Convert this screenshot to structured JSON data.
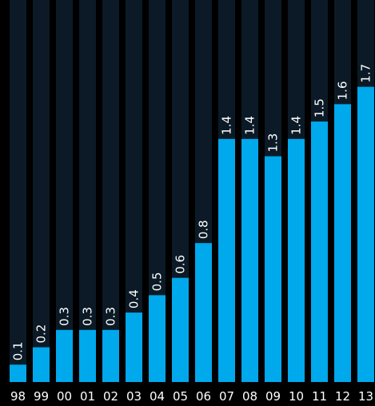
{
  "chart_data": {
    "type": "bar",
    "title": "",
    "xlabel": "",
    "ylabel": "",
    "categories": [
      "98",
      "99",
      "00",
      "01",
      "02",
      "03",
      "04",
      "05",
      "06",
      "07",
      "08",
      "09",
      "10",
      "11",
      "12",
      "13"
    ],
    "values": [
      0.1,
      0.2,
      0.3,
      0.3,
      0.3,
      0.4,
      0.5,
      0.6,
      0.8,
      1.4,
      1.4,
      1.3,
      1.4,
      1.5,
      1.6,
      1.7
    ],
    "ylim": [
      0,
      2.2
    ],
    "grid": false,
    "legend": "none",
    "colors": {
      "background": "#000000",
      "track": "#0b1a26",
      "bar": "#00a8ec",
      "text": "#ffffff"
    }
  }
}
